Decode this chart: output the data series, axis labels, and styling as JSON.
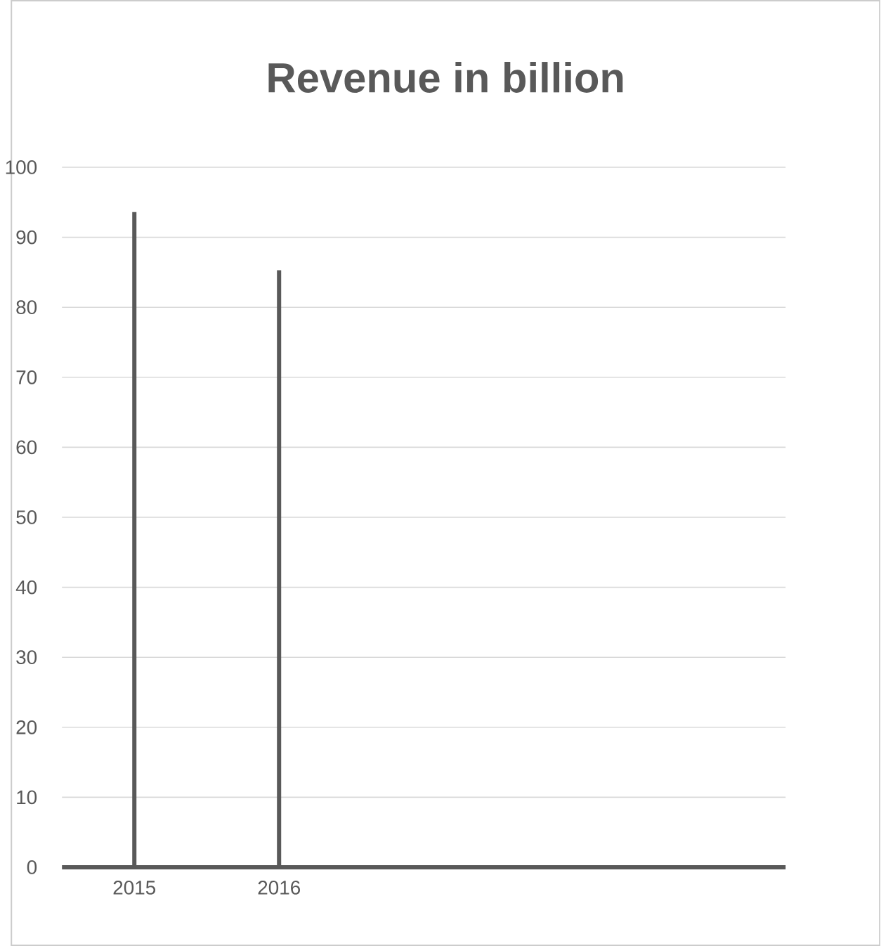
{
  "chart_data": {
    "type": "bar",
    "title": "Revenue in billion",
    "categories": [
      "2015",
      "2016",
      null,
      null,
      null
    ],
    "values": [
      93.6,
      85.3,
      null,
      null,
      null
    ],
    "color": "#595959",
    "ylim": [
      0,
      100
    ],
    "yticks": [
      0,
      10,
      20,
      30,
      40,
      50,
      60,
      70,
      80,
      90,
      100
    ],
    "grid": "y"
  }
}
